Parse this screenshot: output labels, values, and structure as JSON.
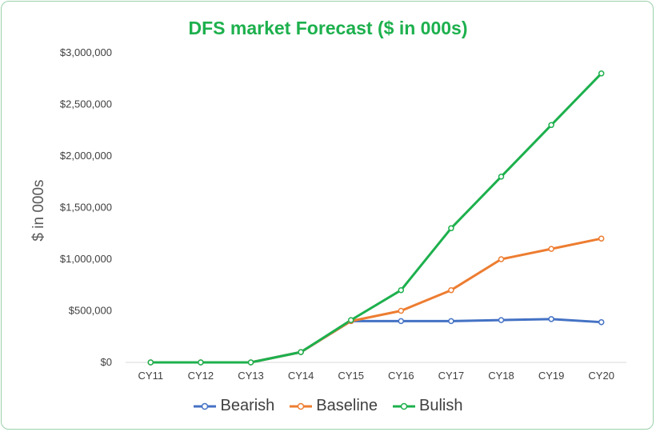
{
  "chart_data": {
    "type": "line",
    "title": "DFS market Forecast ($ in 000s)",
    "xlabel": "",
    "ylabel": "$ in 000s",
    "categories": [
      "CY11",
      "CY12",
      "CY13",
      "CY14",
      "CY15",
      "CY16",
      "CY17",
      "CY18",
      "CY19",
      "CY20"
    ],
    "ylim": [
      0,
      3000000
    ],
    "yticks": [
      "$0",
      "$500,000",
      "$1,000,000",
      "$1,500,000",
      "$2,000,000",
      "$2,500,000",
      "$3,000,000"
    ],
    "grid": false,
    "legend_position": "bottom",
    "series": [
      {
        "name": "Bearish",
        "color": "#4472c4",
        "values": [
          0,
          0,
          0,
          100000,
          400000,
          400000,
          400000,
          410000,
          420000,
          390000
        ]
      },
      {
        "name": "Baseline",
        "color": "#ed7d31",
        "values": [
          0,
          0,
          0,
          100000,
          400000,
          500000,
          700000,
          1000000,
          1100000,
          1200000
        ]
      },
      {
        "name": "Bulish",
        "color": "#1db04d",
        "values": [
          0,
          0,
          0,
          100000,
          410000,
          700000,
          1300000,
          1800000,
          2300000,
          2800000
        ]
      }
    ]
  }
}
